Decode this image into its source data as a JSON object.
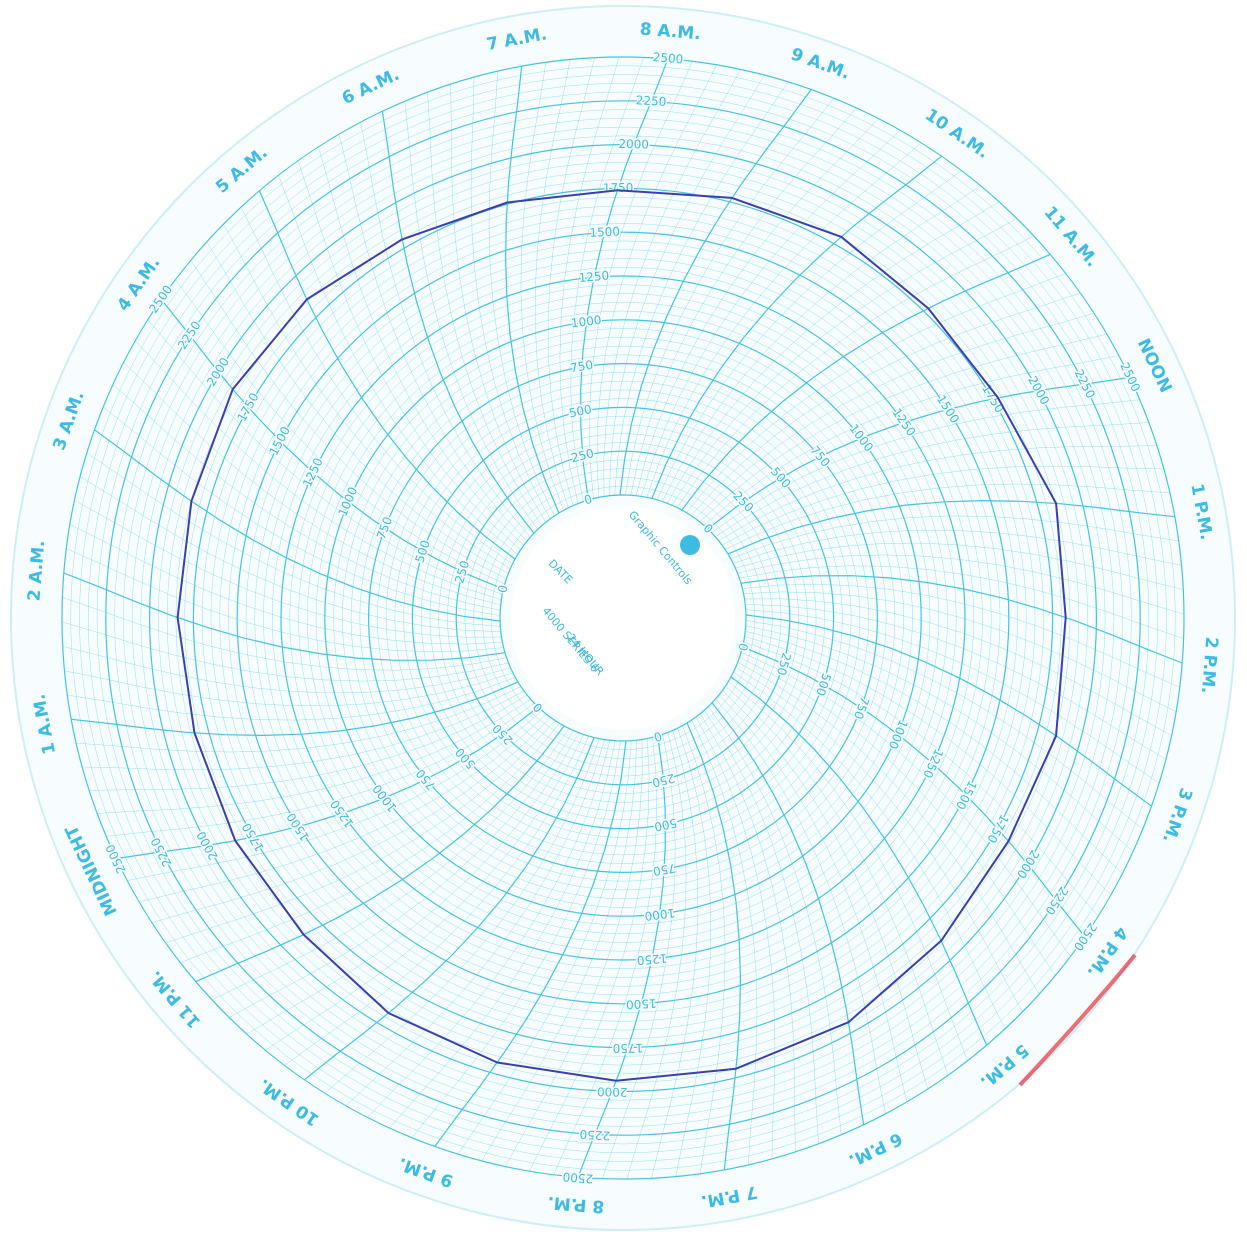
{
  "chart_data": {
    "type": "circular",
    "center_texts": [
      "Graphic Controls",
      "DATE",
      "4000 SERIES 6",
      "24 HOUR"
    ],
    "categories": [
      "MIDNIGHT",
      "1 A.M.",
      "2 A.M.",
      "3 A.M.",
      "4 A.M.",
      "5 A.M.",
      "6 A.M.",
      "7 A.M.",
      "8 A.M.",
      "9 A.M.",
      "10 A.M.",
      "11 A.M.",
      "NOON",
      "1 P.M.",
      "2 P.M.",
      "3 P.M.",
      "4 P.M.",
      "5 P.M.",
      "6 P.M.",
      "7 P.M.",
      "8 P.M.",
      "9 P.M.",
      "10 P.M.",
      "11 P.M."
    ],
    "series": [
      {
        "color": "#3b3fb0",
        "values": [
          1850,
          1830,
          1840,
          1850,
          1880,
          1860,
          1800,
          1760,
          1740,
          1775,
          1805,
          1780,
          1780,
          1855,
          1825,
          1860,
          1840,
          1885,
          1940,
          1950,
          1940,
          1935,
          1920,
          1865
        ]
      }
    ],
    "rlim": [
      0,
      2500
    ],
    "rticks": [
      0,
      250,
      500,
      750,
      1000,
      1250,
      1500,
      1750,
      2000,
      2250,
      2500
    ],
    "grid": true,
    "grid_color": "#45c3e3"
  }
}
